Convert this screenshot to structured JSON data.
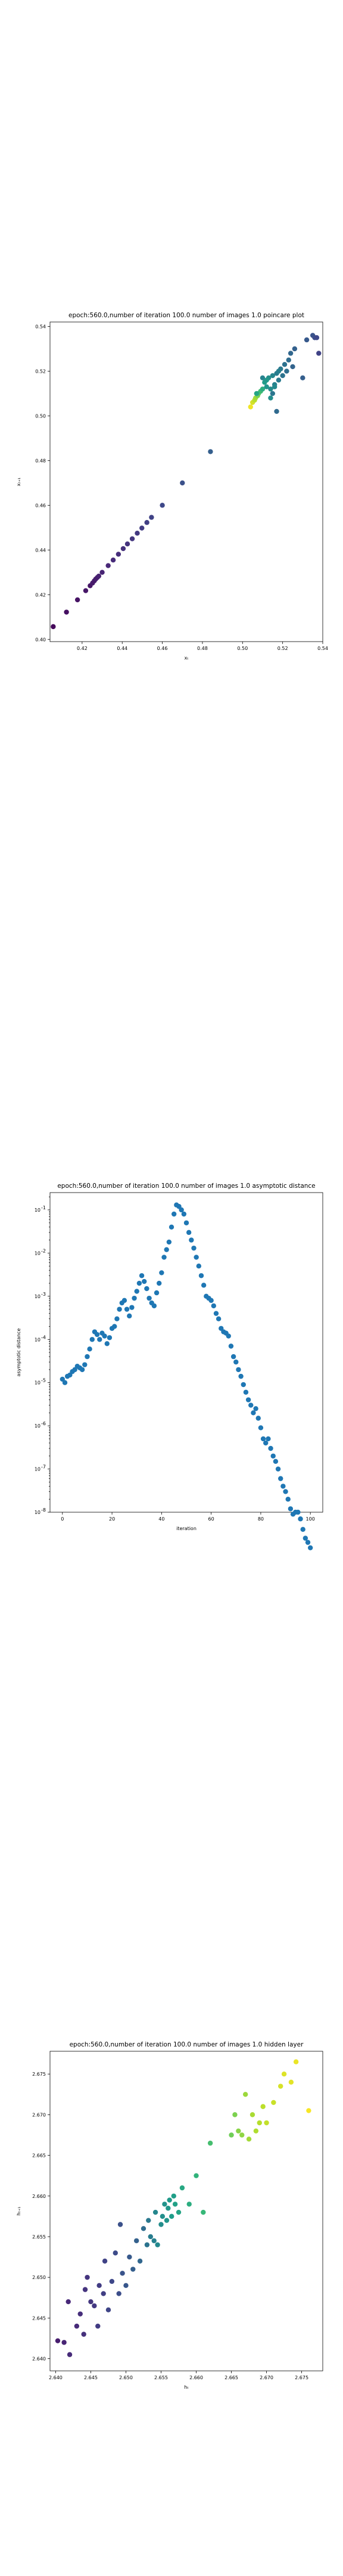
{
  "chart_data": [
    {
      "type": "scatter",
      "title": "epoch:560.0,number of iteration 100.0 number of images 1.0 poincare plot",
      "xlabel": "xₜ",
      "ylabel": "xₜ₊₁",
      "xlim": [
        0.404,
        0.54
      ],
      "ylim": [
        0.399,
        0.542
      ],
      "xticks": [
        0.42,
        0.44,
        0.46,
        0.48,
        0.5,
        0.52,
        0.54
      ],
      "xtick_labels": [
        "0.42",
        "0.44",
        "0.46",
        "0.48",
        "0.50",
        "0.52",
        "0.54"
      ],
      "yticks": [
        0.4,
        0.42,
        0.44,
        0.46,
        0.48,
        0.5,
        0.52,
        0.54
      ],
      "ytick_labels": [
        "0.40",
        "0.42",
        "0.44",
        "0.46",
        "0.48",
        "0.50",
        "0.52",
        "0.54"
      ],
      "colormap": "viridis",
      "points": [
        {
          "x": 0.4056,
          "y": 0.4057,
          "c": 0.02
        },
        {
          "x": 0.4122,
          "y": 0.4122,
          "c": 0.04
        },
        {
          "x": 0.4177,
          "y": 0.4177,
          "c": 0.05
        },
        {
          "x": 0.4218,
          "y": 0.4218,
          "c": 0.06
        },
        {
          "x": 0.424,
          "y": 0.424,
          "c": 0.06
        },
        {
          "x": 0.4252,
          "y": 0.4252,
          "c": 0.07
        },
        {
          "x": 0.4261,
          "y": 0.4262,
          "c": 0.07
        },
        {
          "x": 0.4268,
          "y": 0.427,
          "c": 0.08
        },
        {
          "x": 0.4276,
          "y": 0.4277,
          "c": 0.08
        },
        {
          "x": 0.4283,
          "y": 0.4283,
          "c": 0.09
        },
        {
          "x": 0.43,
          "y": 0.43,
          "c": 0.1
        },
        {
          "x": 0.433,
          "y": 0.433,
          "c": 0.11
        },
        {
          "x": 0.4355,
          "y": 0.4355,
          "c": 0.12
        },
        {
          "x": 0.4381,
          "y": 0.4381,
          "c": 0.13
        },
        {
          "x": 0.4405,
          "y": 0.4406,
          "c": 0.14
        },
        {
          "x": 0.4426,
          "y": 0.4427,
          "c": 0.15
        },
        {
          "x": 0.445,
          "y": 0.445,
          "c": 0.16
        },
        {
          "x": 0.4475,
          "y": 0.4475,
          "c": 0.17
        },
        {
          "x": 0.4498,
          "y": 0.4498,
          "c": 0.18
        },
        {
          "x": 0.4523,
          "y": 0.4523,
          "c": 0.19
        },
        {
          "x": 0.4546,
          "y": 0.4546,
          "c": 0.2
        },
        {
          "x": 0.46,
          "y": 0.46,
          "c": 0.22
        },
        {
          "x": 0.47,
          "y": 0.47,
          "c": 0.25
        },
        {
          "x": 0.484,
          "y": 0.484,
          "c": 0.3
        },
        {
          "x": 0.504,
          "y": 0.504,
          "c": 0.98
        },
        {
          "x": 0.505,
          "y": 0.506,
          "c": 0.94
        },
        {
          "x": 0.506,
          "y": 0.507,
          "c": 0.9
        },
        {
          "x": 0.5065,
          "y": 0.508,
          "c": 0.86
        },
        {
          "x": 0.5075,
          "y": 0.509,
          "c": 0.8
        },
        {
          "x": 0.508,
          "y": 0.51,
          "c": 0.74
        },
        {
          "x": 0.509,
          "y": 0.511,
          "c": 0.68
        },
        {
          "x": 0.51,
          "y": 0.512,
          "c": 0.62
        },
        {
          "x": 0.507,
          "y": 0.51,
          "c": 0.58
        },
        {
          "x": 0.511,
          "y": 0.515,
          "c": 0.55
        },
        {
          "x": 0.512,
          "y": 0.513,
          "c": 0.52
        },
        {
          "x": 0.513,
          "y": 0.517,
          "c": 0.5
        },
        {
          "x": 0.514,
          "y": 0.512,
          "c": 0.48
        },
        {
          "x": 0.515,
          "y": 0.518,
          "c": 0.46
        },
        {
          "x": 0.51,
          "y": 0.517,
          "c": 0.45
        },
        {
          "x": 0.516,
          "y": 0.514,
          "c": 0.44
        },
        {
          "x": 0.517,
          "y": 0.519,
          "c": 0.42
        },
        {
          "x": 0.518,
          "y": 0.516,
          "c": 0.41
        },
        {
          "x": 0.519,
          "y": 0.521,
          "c": 0.4
        },
        {
          "x": 0.515,
          "y": 0.51,
          "c": 0.39
        },
        {
          "x": 0.52,
          "y": 0.518,
          "c": 0.38
        },
        {
          "x": 0.521,
          "y": 0.523,
          "c": 0.37
        },
        {
          "x": 0.522,
          "y": 0.52,
          "c": 0.36
        },
        {
          "x": 0.523,
          "y": 0.525,
          "c": 0.35
        },
        {
          "x": 0.517,
          "y": 0.502,
          "c": 0.34
        },
        {
          "x": 0.524,
          "y": 0.528,
          "c": 0.33
        },
        {
          "x": 0.525,
          "y": 0.522,
          "c": 0.32
        },
        {
          "x": 0.526,
          "y": 0.53,
          "c": 0.31
        },
        {
          "x": 0.53,
          "y": 0.517,
          "c": 0.3
        },
        {
          "x": 0.532,
          "y": 0.534,
          "c": 0.28
        },
        {
          "x": 0.535,
          "y": 0.536,
          "c": 0.26
        },
        {
          "x": 0.536,
          "y": 0.535,
          "c": 0.24
        },
        {
          "x": 0.537,
          "y": 0.535,
          "c": 0.22
        },
        {
          "x": 0.538,
          "y": 0.528,
          "c": 0.2
        },
        {
          "x": 0.516,
          "y": 0.513,
          "c": 0.47
        },
        {
          "x": 0.512,
          "y": 0.516,
          "c": 0.53
        },
        {
          "x": 0.518,
          "y": 0.52,
          "c": 0.43
        },
        {
          "x": 0.514,
          "y": 0.508,
          "c": 0.49
        }
      ]
    },
    {
      "type": "scatter",
      "title": "epoch:560.0,number of iteration 100.0  number of images 1.0 asymptotic distance",
      "xlabel": "iteration",
      "ylabel": "asymptotic distance",
      "xlim": [
        -5,
        105
      ],
      "ylim_log10": [
        -8,
        -0.6
      ],
      "xticks": [
        0,
        20,
        40,
        60,
        80,
        100
      ],
      "xtick_labels": [
        "0",
        "20",
        "40",
        "60",
        "80",
        "100"
      ],
      "yticks_log10": [
        -8,
        -7,
        -6,
        -5,
        -4,
        -3,
        -2,
        -1
      ],
      "ytick_exponents": [
        "-8",
        "-7",
        "-6",
        "-5",
        "-4",
        "-3",
        "-2",
        "-1"
      ],
      "color": "#1f77b4",
      "x": [
        0,
        1,
        2,
        3,
        4,
        5,
        6,
        7,
        8,
        9,
        10,
        11,
        12,
        13,
        14,
        15,
        16,
        17,
        18,
        19,
        20,
        21,
        22,
        23,
        24,
        25,
        26,
        27,
        28,
        29,
        30,
        31,
        32,
        33,
        34,
        35,
        36,
        37,
        38,
        39,
        40,
        41,
        42,
        43,
        44,
        45,
        46,
        47,
        48,
        49,
        50,
        51,
        52,
        53,
        54,
        55,
        56,
        57,
        58,
        59,
        60,
        61,
        62,
        63,
        64,
        65,
        66,
        67,
        68,
        69,
        70,
        71,
        72,
        73,
        74,
        75,
        76,
        77,
        78,
        79,
        80,
        81,
        82,
        83,
        84,
        85,
        86,
        87,
        88,
        89,
        90,
        91,
        92,
        93,
        94,
        95,
        96,
        97,
        98,
        99,
        100
      ],
      "y": [
        1.2e-05,
        1e-05,
        1.4e-05,
        1.5e-05,
        1.8e-05,
        2e-05,
        2.4e-05,
        2.2e-05,
        2e-05,
        2.6e-05,
        4e-05,
        6e-05,
        0.0001,
        0.00015,
        0.00013,
        0.0001,
        0.00014,
        0.00012,
        8e-05,
        0.00011,
        0.00018,
        0.0002,
        0.0003,
        0.0005,
        0.0007,
        0.0008,
        0.0005,
        0.00035,
        0.00055,
        0.0009,
        0.0013,
        0.002,
        0.003,
        0.0022,
        0.0015,
        0.0009,
        0.0007,
        0.0006,
        0.0012,
        0.002,
        0.0035,
        0.008,
        0.012,
        0.018,
        0.04,
        0.08,
        0.13,
        0.12,
        0.1,
        0.08,
        0.05,
        0.03,
        0.02,
        0.013,
        0.008,
        0.005,
        0.003,
        0.0018,
        0.001,
        0.0009,
        0.0008,
        0.0006,
        0.0004,
        0.0003,
        0.00018,
        0.00015,
        0.00014,
        0.00012,
        7e-05,
        4e-05,
        3e-05,
        2e-05,
        1.4e-05,
        9e-06,
        6e-06,
        4e-06,
        3e-06,
        2e-06,
        2.5e-06,
        1.5e-06,
        9e-07,
        5e-07,
        4e-07,
        5e-07,
        3e-07,
        2e-07,
        1.5e-07,
        1e-07,
        6e-08,
        4e-08,
        3e-08,
        2e-08,
        1.2e-08,
        9e-09,
        1e-08,
        1e-08,
        7e-09,
        4e-09,
        2.5e-09,
        2e-09,
        1.5e-09
      ]
    },
    {
      "type": "scatter",
      "title": "epoch:560.0,number of iteration 100.0  number of images 1.0 hidden layer",
      "xlabel": "hₜ",
      "ylabel": "hₜ₊₁",
      "xlim": [
        2.6392,
        2.678
      ],
      "ylim": [
        2.6385,
        2.6778
      ],
      "xticks": [
        2.64,
        2.645,
        2.65,
        2.655,
        2.66,
        2.665,
        2.67,
        2.675
      ],
      "xtick_labels": [
        "2.640",
        "2.645",
        "2.650",
        "2.655",
        "2.660",
        "2.665",
        "2.670",
        "2.675"
      ],
      "yticks": [
        2.64,
        2.645,
        2.65,
        2.655,
        2.66,
        2.665,
        2.67,
        2.675
      ],
      "ytick_labels": [
        "2.640",
        "2.645",
        "2.650",
        "2.655",
        "2.660",
        "2.665",
        "2.670",
        "2.675"
      ],
      "colormap": "viridis",
      "points": [
        {
          "x": 2.6403,
          "y": 2.6422,
          "c": 0.08
        },
        {
          "x": 2.6412,
          "y": 2.642,
          "c": 0.1
        },
        {
          "x": 2.6418,
          "y": 2.647,
          "c": 0.11
        },
        {
          "x": 2.642,
          "y": 2.6405,
          "c": 0.12
        },
        {
          "x": 2.643,
          "y": 2.644,
          "c": 0.12
        },
        {
          "x": 2.6435,
          "y": 2.6455,
          "c": 0.13
        },
        {
          "x": 2.644,
          "y": 2.643,
          "c": 0.14
        },
        {
          "x": 2.6442,
          "y": 2.6485,
          "c": 0.15
        },
        {
          "x": 2.6445,
          "y": 2.65,
          "c": 0.15
        },
        {
          "x": 2.645,
          "y": 2.647,
          "c": 0.16
        },
        {
          "x": 2.6455,
          "y": 2.6465,
          "c": 0.17
        },
        {
          "x": 2.646,
          "y": 2.644,
          "c": 0.18
        },
        {
          "x": 2.6462,
          "y": 2.649,
          "c": 0.18
        },
        {
          "x": 2.6468,
          "y": 2.648,
          "c": 0.19
        },
        {
          "x": 2.647,
          "y": 2.652,
          "c": 0.2
        },
        {
          "x": 2.6475,
          "y": 2.646,
          "c": 0.21
        },
        {
          "x": 2.648,
          "y": 2.6495,
          "c": 0.22
        },
        {
          "x": 2.6485,
          "y": 2.653,
          "c": 0.23
        },
        {
          "x": 2.649,
          "y": 2.648,
          "c": 0.24
        },
        {
          "x": 2.6492,
          "y": 2.6565,
          "c": 0.25
        },
        {
          "x": 2.6495,
          "y": 2.6505,
          "c": 0.26
        },
        {
          "x": 2.65,
          "y": 2.649,
          "c": 0.27
        },
        {
          "x": 2.6505,
          "y": 2.6525,
          "c": 0.28
        },
        {
          "x": 2.651,
          "y": 2.651,
          "c": 0.3
        },
        {
          "x": 2.6515,
          "y": 2.6545,
          "c": 0.31
        },
        {
          "x": 2.652,
          "y": 2.652,
          "c": 0.33
        },
        {
          "x": 2.6525,
          "y": 2.656,
          "c": 0.35
        },
        {
          "x": 2.653,
          "y": 2.654,
          "c": 0.38
        },
        {
          "x": 2.6532,
          "y": 2.657,
          "c": 0.4
        },
        {
          "x": 2.6535,
          "y": 2.655,
          "c": 0.42
        },
        {
          "x": 2.654,
          "y": 2.6545,
          "c": 0.44
        },
        {
          "x": 2.6542,
          "y": 2.658,
          "c": 0.46
        },
        {
          "x": 2.6545,
          "y": 2.654,
          "c": 0.47
        },
        {
          "x": 2.655,
          "y": 2.6565,
          "c": 0.49
        },
        {
          "x": 2.6552,
          "y": 2.6575,
          "c": 0.5
        },
        {
          "x": 2.6555,
          "y": 2.659,
          "c": 0.51
        },
        {
          "x": 2.6558,
          "y": 2.657,
          "c": 0.52
        },
        {
          "x": 2.656,
          "y": 2.6585,
          "c": 0.53
        },
        {
          "x": 2.6562,
          "y": 2.6595,
          "c": 0.54
        },
        {
          "x": 2.6565,
          "y": 2.6575,
          "c": 0.55
        },
        {
          "x": 2.6568,
          "y": 2.66,
          "c": 0.56
        },
        {
          "x": 2.657,
          "y": 2.659,
          "c": 0.57
        },
        {
          "x": 2.6575,
          "y": 2.658,
          "c": 0.58
        },
        {
          "x": 2.658,
          "y": 2.661,
          "c": 0.6
        },
        {
          "x": 2.659,
          "y": 2.659,
          "c": 0.62
        },
        {
          "x": 2.66,
          "y": 2.6625,
          "c": 0.65
        },
        {
          "x": 2.661,
          "y": 2.658,
          "c": 0.67
        },
        {
          "x": 2.662,
          "y": 2.6665,
          "c": 0.7
        },
        {
          "x": 2.665,
          "y": 2.6675,
          "c": 0.78
        },
        {
          "x": 2.6655,
          "y": 2.67,
          "c": 0.8
        },
        {
          "x": 2.666,
          "y": 2.668,
          "c": 0.82
        },
        {
          "x": 2.6665,
          "y": 2.6675,
          "c": 0.83
        },
        {
          "x": 2.667,
          "y": 2.6725,
          "c": 0.85
        },
        {
          "x": 2.6675,
          "y": 2.667,
          "c": 0.86
        },
        {
          "x": 2.668,
          "y": 2.67,
          "c": 0.87
        },
        {
          "x": 2.6685,
          "y": 2.668,
          "c": 0.88
        },
        {
          "x": 2.669,
          "y": 2.669,
          "c": 0.89
        },
        {
          "x": 2.6695,
          "y": 2.671,
          "c": 0.9
        },
        {
          "x": 2.67,
          "y": 2.669,
          "c": 0.91
        },
        {
          "x": 2.671,
          "y": 2.6715,
          "c": 0.92
        },
        {
          "x": 2.672,
          "y": 2.6735,
          "c": 0.94
        },
        {
          "x": 2.6725,
          "y": 2.675,
          "c": 0.95
        },
        {
          "x": 2.6735,
          "y": 2.674,
          "c": 0.96
        },
        {
          "x": 2.6742,
          "y": 2.6765,
          "c": 0.97
        },
        {
          "x": 2.676,
          "y": 2.6705,
          "c": 0.99
        }
      ]
    }
  ]
}
